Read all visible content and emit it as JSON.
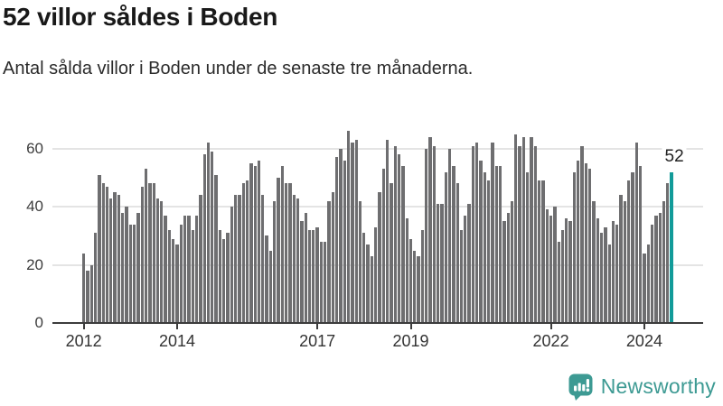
{
  "title": "52 villor såldes i Boden",
  "subtitle": "Antal sålda villor i Boden under de senaste tre månaderna.",
  "annotation": {
    "label": "52"
  },
  "footer": {
    "brand": "Newsworthy",
    "logo_icon": "bar-chart-speech-bubble-icon"
  },
  "colors": {
    "bar": "#6e6e70",
    "highlight": "#129b99",
    "grid": "#e4e4e4",
    "axis": "#3c3c3c",
    "brand": "#3d9a93"
  },
  "chart_data": {
    "type": "bar",
    "title": "52 villor såldes i Boden",
    "xlabel": "",
    "ylabel": "",
    "x_start_month": "2012-01",
    "x_end_month": "2024-08",
    "values": [
      24,
      18,
      20,
      31,
      51,
      48,
      47,
      43,
      45,
      44,
      38,
      40,
      34,
      34,
      38,
      47,
      53,
      48,
      48,
      43,
      42,
      37,
      32,
      29,
      27,
      34,
      37,
      37,
      32,
      37,
      44,
      58,
      62,
      59,
      51,
      32,
      29,
      31,
      40,
      44,
      44,
      48,
      49,
      55,
      54,
      56,
      44,
      30,
      25,
      42,
      50,
      54,
      48,
      48,
      44,
      43,
      35,
      38,
      32,
      32,
      33,
      28,
      28,
      42,
      45,
      57,
      60,
      56,
      66,
      62,
      63,
      42,
      31,
      27,
      23,
      33,
      45,
      53,
      63,
      48,
      61,
      58,
      54,
      36,
      29,
      25,
      23,
      32,
      60,
      64,
      61,
      41,
      41,
      52,
      60,
      54,
      48,
      32,
      37,
      41,
      61,
      62,
      56,
      52,
      49,
      62,
      54,
      54,
      35,
      38,
      42,
      65,
      61,
      64,
      52,
      64,
      61,
      49,
      49,
      39,
      37,
      40,
      28,
      32,
      36,
      35,
      52,
      56,
      61,
      55,
      53,
      42,
      36,
      31,
      33,
      27,
      35,
      34,
      44,
      42,
      49,
      52,
      62,
      54,
      24,
      27,
      34,
      37,
      38,
      42,
      48,
      52
    ],
    "highlight_last": true,
    "highlight_value": 52,
    "y_ticks": [
      0,
      20,
      40,
      60
    ],
    "ylim": [
      0,
      68
    ],
    "x_ticks": [
      {
        "label": "2012",
        "month_index": 0
      },
      {
        "label": "2014",
        "month_index": 24
      },
      {
        "label": "2017",
        "month_index": 60
      },
      {
        "label": "2019",
        "month_index": 84
      },
      {
        "label": "2022",
        "month_index": 120
      },
      {
        "label": "2024",
        "month_index": 144
      }
    ],
    "grid": "horizontal",
    "legend": "none"
  }
}
